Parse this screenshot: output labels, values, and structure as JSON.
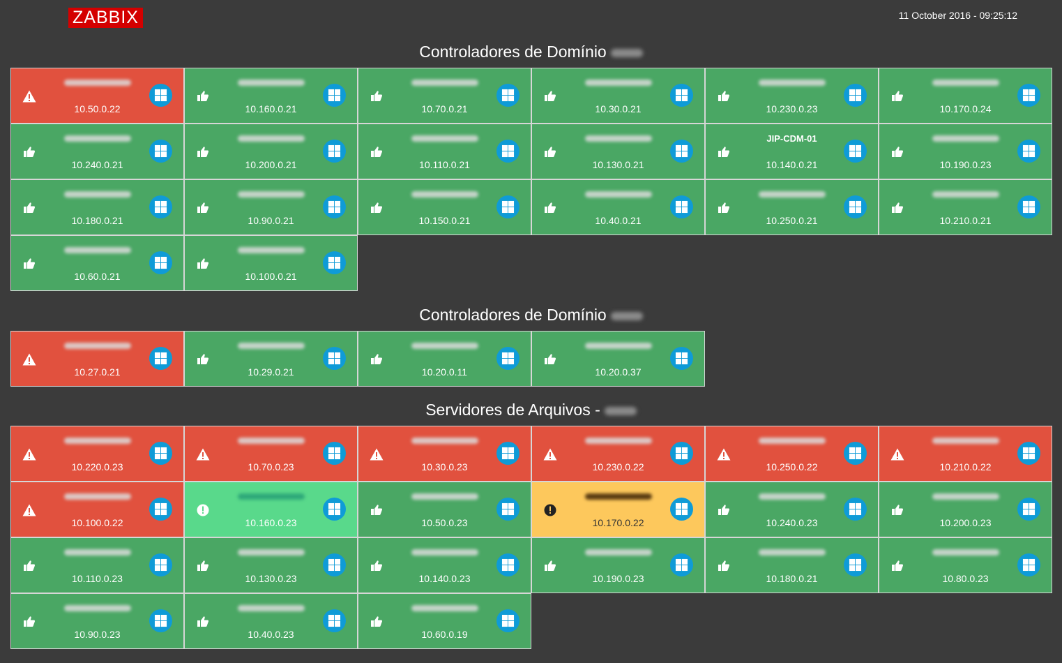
{
  "header": {
    "logo": "ZABBIX",
    "datetime": "11 October 2016 - 09:25:12"
  },
  "colors": {
    "ok": "#4aa764",
    "disaster": "#e1513e",
    "info": "#59d98b",
    "warning": "#fdc85c",
    "background": "#3b3b3b",
    "windows_icon": "#0f9bd7"
  },
  "icons": {
    "ok": "thumbs-up-icon",
    "disaster": "warning-triangle-icon",
    "info": "info-circle-icon",
    "warning": "exclamation-circle-icon",
    "os": "windows-icon"
  },
  "sections": [
    {
      "title": "Controladores de Domínio",
      "hosts": [
        {
          "ip": "10.50.0.22",
          "status": "disaster"
        },
        {
          "ip": "10.160.0.21",
          "status": "ok"
        },
        {
          "ip": "10.70.0.21",
          "status": "ok"
        },
        {
          "ip": "10.30.0.21",
          "status": "ok"
        },
        {
          "ip": "10.230.0.23",
          "status": "ok"
        },
        {
          "ip": "10.170.0.24",
          "status": "ok"
        },
        {
          "ip": "10.240.0.21",
          "status": "ok"
        },
        {
          "ip": "10.200.0.21",
          "status": "ok"
        },
        {
          "ip": "10.110.0.21",
          "status": "ok"
        },
        {
          "ip": "10.130.0.21",
          "status": "ok"
        },
        {
          "ip": "10.140.0.21",
          "status": "ok",
          "name": "JIP-CDM-01"
        },
        {
          "ip": "10.190.0.23",
          "status": "ok"
        },
        {
          "ip": "10.180.0.21",
          "status": "ok"
        },
        {
          "ip": "10.90.0.21",
          "status": "ok"
        },
        {
          "ip": "10.150.0.21",
          "status": "ok"
        },
        {
          "ip": "10.40.0.21",
          "status": "ok"
        },
        {
          "ip": "10.250.0.21",
          "status": "ok"
        },
        {
          "ip": "10.210.0.21",
          "status": "ok"
        },
        {
          "ip": "10.60.0.21",
          "status": "ok"
        },
        {
          "ip": "10.100.0.21",
          "status": "ok"
        }
      ]
    },
    {
      "title": "Controladores de Domínio",
      "hosts": [
        {
          "ip": "10.27.0.21",
          "status": "disaster"
        },
        {
          "ip": "10.29.0.21",
          "status": "ok"
        },
        {
          "ip": "10.20.0.11",
          "status": "ok"
        },
        {
          "ip": "10.20.0.37",
          "status": "ok"
        }
      ]
    },
    {
      "title": "Servidores de Arquivos -",
      "hosts": [
        {
          "ip": "10.220.0.23",
          "status": "disaster"
        },
        {
          "ip": "10.70.0.23",
          "status": "disaster"
        },
        {
          "ip": "10.30.0.23",
          "status": "disaster"
        },
        {
          "ip": "10.230.0.22",
          "status": "disaster"
        },
        {
          "ip": "10.250.0.22",
          "status": "disaster"
        },
        {
          "ip": "10.210.0.22",
          "status": "disaster"
        },
        {
          "ip": "10.100.0.22",
          "status": "disaster"
        },
        {
          "ip": "10.160.0.23",
          "status": "info"
        },
        {
          "ip": "10.50.0.23",
          "status": "ok"
        },
        {
          "ip": "10.170.0.22",
          "status": "warning"
        },
        {
          "ip": "10.240.0.23",
          "status": "ok"
        },
        {
          "ip": "10.200.0.23",
          "status": "ok"
        },
        {
          "ip": "10.110.0.23",
          "status": "ok"
        },
        {
          "ip": "10.130.0.23",
          "status": "ok"
        },
        {
          "ip": "10.140.0.23",
          "status": "ok"
        },
        {
          "ip": "10.190.0.23",
          "status": "ok"
        },
        {
          "ip": "10.180.0.21",
          "status": "ok"
        },
        {
          "ip": "10.80.0.23",
          "status": "ok"
        },
        {
          "ip": "10.90.0.23",
          "status": "ok"
        },
        {
          "ip": "10.40.0.23",
          "status": "ok"
        },
        {
          "ip": "10.60.0.19",
          "status": "ok"
        }
      ]
    }
  ]
}
